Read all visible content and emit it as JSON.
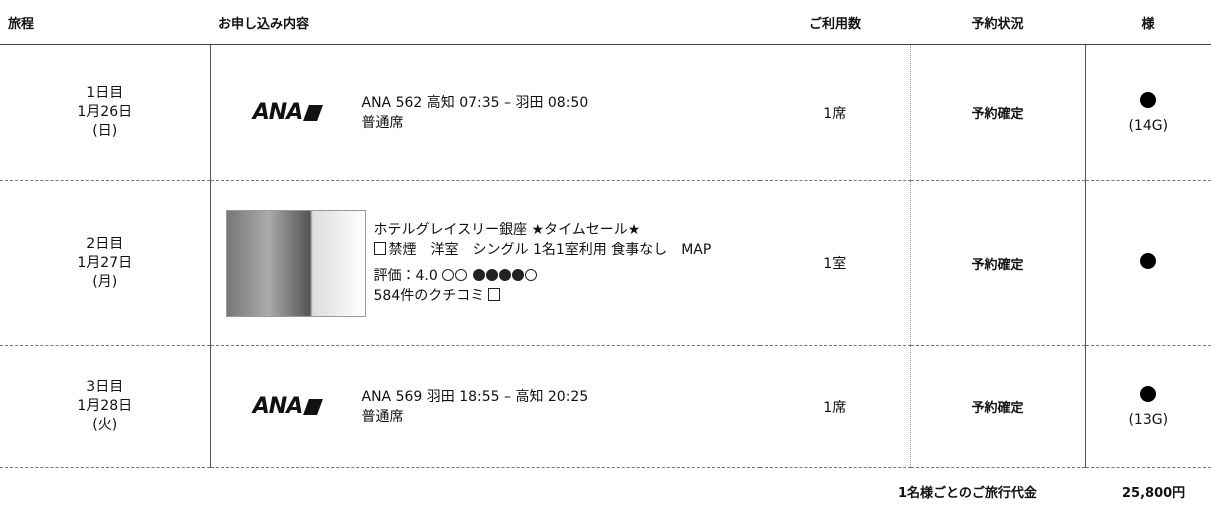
{
  "header": [
    "旅程",
    "お申し込み内容",
    "ご利用数",
    "予約状況",
    "様"
  ],
  "rows": [
    {
      "day": "1日目",
      "date": "1月26日",
      "weekday": "(日)",
      "logo": "ANA",
      "lines": [
        "ANA 562  高知 07:35 – 羽田 08:50",
        "普通席"
      ],
      "count": "1席",
      "status": "予約確定",
      "seat": "(14G)"
    },
    {
      "day": "2日目",
      "date": "1月27日",
      "weekday": "(月)",
      "lines": [
        "ホテルグレイスリー銀座 ★タイムセール★",
        "禁煙　洋室　シングル 1名1室利用 食事なし　MAP"
      ],
      "rating": "評価：4.0",
      "reviews": "584件のクチコミ",
      "count": "1室",
      "status": "予約確定"
    },
    {
      "day": "3日目",
      "date": "1月28日",
      "weekday": "(火)",
      "logo": "ANA",
      "lines": [
        "ANA 569  羽田 18:55 – 高知 20:25",
        "普通席"
      ],
      "count": "1席",
      "status": "予約確定",
      "seat": "(13G)"
    }
  ],
  "footer": {
    "label": "1名様ごとのご旅行代金",
    "amount": "25,800円"
  }
}
